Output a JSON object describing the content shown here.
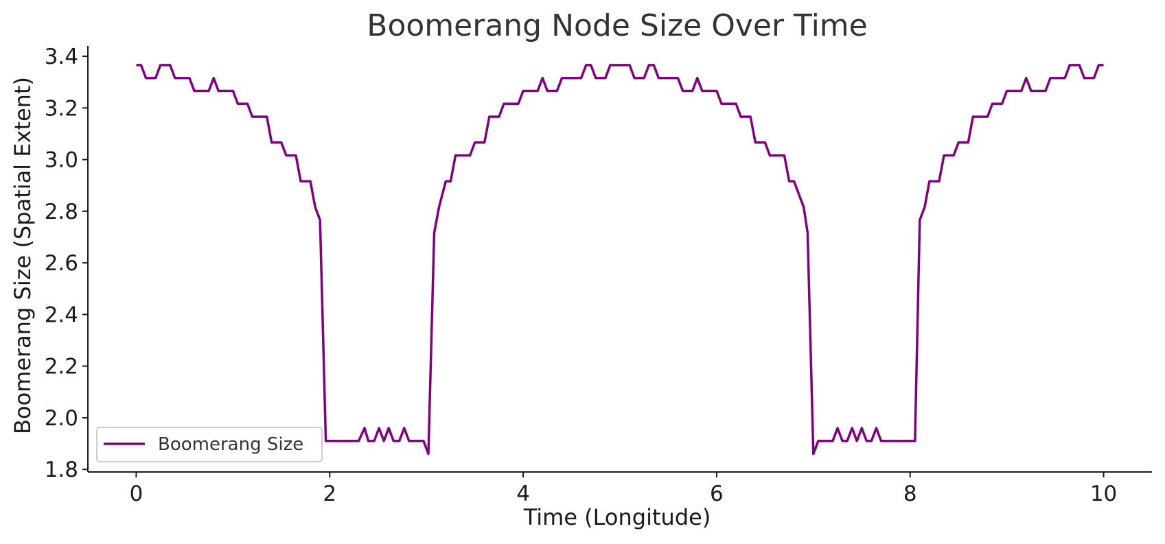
{
  "chart_data": {
    "type": "line",
    "title": "Boomerang Node Size Over Time",
    "xlabel": "Time (Longitude)",
    "ylabel": "Boomerang Size (Spatial Extent)",
    "xlim": [
      -0.5,
      10.5
    ],
    "ylim": [
      1.79,
      3.44
    ],
    "x_ticks": [
      0,
      2,
      4,
      6,
      8,
      10
    ],
    "x_tick_labels": [
      "0",
      "2",
      "4",
      "6",
      "8",
      "10"
    ],
    "y_ticks": [
      1.8,
      2.0,
      2.2,
      2.4,
      2.6,
      2.8,
      3.0,
      3.2,
      3.4
    ],
    "y_tick_labels": [
      "1.8",
      "2.0",
      "2.2",
      "2.4",
      "2.6",
      "2.8",
      "3.0",
      "3.2",
      "3.4"
    ],
    "grid": false,
    "legend_position": "lower-left",
    "series": [
      {
        "name": "Boomerang Size",
        "color": "#800080",
        "points": [
          [
            0.0,
            3.366
          ],
          [
            0.05,
            3.366
          ],
          [
            0.1,
            3.316
          ],
          [
            0.2,
            3.316
          ],
          [
            0.25,
            3.366
          ],
          [
            0.35,
            3.366
          ],
          [
            0.4,
            3.316
          ],
          [
            0.55,
            3.316
          ],
          [
            0.6,
            3.266
          ],
          [
            0.75,
            3.266
          ],
          [
            0.8,
            3.316
          ],
          [
            0.85,
            3.266
          ],
          [
            1.0,
            3.266
          ],
          [
            1.05,
            3.216
          ],
          [
            1.15,
            3.216
          ],
          [
            1.2,
            3.166
          ],
          [
            1.35,
            3.166
          ],
          [
            1.4,
            3.066
          ],
          [
            1.5,
            3.066
          ],
          [
            1.55,
            3.016
          ],
          [
            1.65,
            3.016
          ],
          [
            1.7,
            2.916
          ],
          [
            1.8,
            2.916
          ],
          [
            1.85,
            2.816
          ],
          [
            1.9,
            2.766
          ],
          [
            1.96,
            1.91
          ],
          [
            2.3,
            1.91
          ],
          [
            2.36,
            1.96
          ],
          [
            2.4,
            1.91
          ],
          [
            2.46,
            1.91
          ],
          [
            2.51,
            1.96
          ],
          [
            2.56,
            1.91
          ],
          [
            2.61,
            1.96
          ],
          [
            2.66,
            1.91
          ],
          [
            2.72,
            1.91
          ],
          [
            2.77,
            1.96
          ],
          [
            2.82,
            1.91
          ],
          [
            2.97,
            1.91
          ],
          [
            3.02,
            1.86
          ],
          [
            3.08,
            2.716
          ],
          [
            3.13,
            2.816
          ],
          [
            3.2,
            2.916
          ],
          [
            3.25,
            2.916
          ],
          [
            3.3,
            3.016
          ],
          [
            3.45,
            3.016
          ],
          [
            3.5,
            3.066
          ],
          [
            3.6,
            3.066
          ],
          [
            3.65,
            3.166
          ],
          [
            3.75,
            3.166
          ],
          [
            3.8,
            3.216
          ],
          [
            3.95,
            3.216
          ],
          [
            4.0,
            3.266
          ],
          [
            4.15,
            3.266
          ],
          [
            4.2,
            3.316
          ],
          [
            4.25,
            3.266
          ],
          [
            4.35,
            3.266
          ],
          [
            4.4,
            3.316
          ],
          [
            4.6,
            3.316
          ],
          [
            4.65,
            3.366
          ],
          [
            4.7,
            3.366
          ],
          [
            4.75,
            3.316
          ],
          [
            4.85,
            3.316
          ],
          [
            4.9,
            3.366
          ],
          [
            5.1,
            3.366
          ],
          [
            5.15,
            3.316
          ],
          [
            5.25,
            3.316
          ],
          [
            5.3,
            3.366
          ],
          [
            5.35,
            3.366
          ],
          [
            5.4,
            3.316
          ],
          [
            5.6,
            3.316
          ],
          [
            5.65,
            3.266
          ],
          [
            5.75,
            3.266
          ],
          [
            5.8,
            3.316
          ],
          [
            5.85,
            3.266
          ],
          [
            6.0,
            3.266
          ],
          [
            6.05,
            3.216
          ],
          [
            6.2,
            3.216
          ],
          [
            6.25,
            3.166
          ],
          [
            6.35,
            3.166
          ],
          [
            6.4,
            3.066
          ],
          [
            6.5,
            3.066
          ],
          [
            6.55,
            3.016
          ],
          [
            6.7,
            3.016
          ],
          [
            6.75,
            2.916
          ],
          [
            6.8,
            2.916
          ],
          [
            6.9,
            2.816
          ],
          [
            6.94,
            2.716
          ],
          [
            7.0,
            1.86
          ],
          [
            7.05,
            1.91
          ],
          [
            7.2,
            1.91
          ],
          [
            7.25,
            1.96
          ],
          [
            7.3,
            1.91
          ],
          [
            7.35,
            1.91
          ],
          [
            7.4,
            1.96
          ],
          [
            7.45,
            1.91
          ],
          [
            7.5,
            1.96
          ],
          [
            7.55,
            1.91
          ],
          [
            7.6,
            1.91
          ],
          [
            7.65,
            1.96
          ],
          [
            7.7,
            1.91
          ],
          [
            8.05,
            1.91
          ],
          [
            8.1,
            2.766
          ],
          [
            8.15,
            2.816
          ],
          [
            8.2,
            2.916
          ],
          [
            8.3,
            2.916
          ],
          [
            8.35,
            3.016
          ],
          [
            8.45,
            3.016
          ],
          [
            8.5,
            3.066
          ],
          [
            8.6,
            3.066
          ],
          [
            8.65,
            3.166
          ],
          [
            8.8,
            3.166
          ],
          [
            8.85,
            3.216
          ],
          [
            8.95,
            3.216
          ],
          [
            9.0,
            3.266
          ],
          [
            9.15,
            3.266
          ],
          [
            9.2,
            3.316
          ],
          [
            9.25,
            3.266
          ],
          [
            9.4,
            3.266
          ],
          [
            9.45,
            3.316
          ],
          [
            9.6,
            3.316
          ],
          [
            9.65,
            3.366
          ],
          [
            9.75,
            3.366
          ],
          [
            9.8,
            3.316
          ],
          [
            9.9,
            3.316
          ],
          [
            9.95,
            3.366
          ],
          [
            10.0,
            3.366
          ]
        ]
      }
    ]
  }
}
